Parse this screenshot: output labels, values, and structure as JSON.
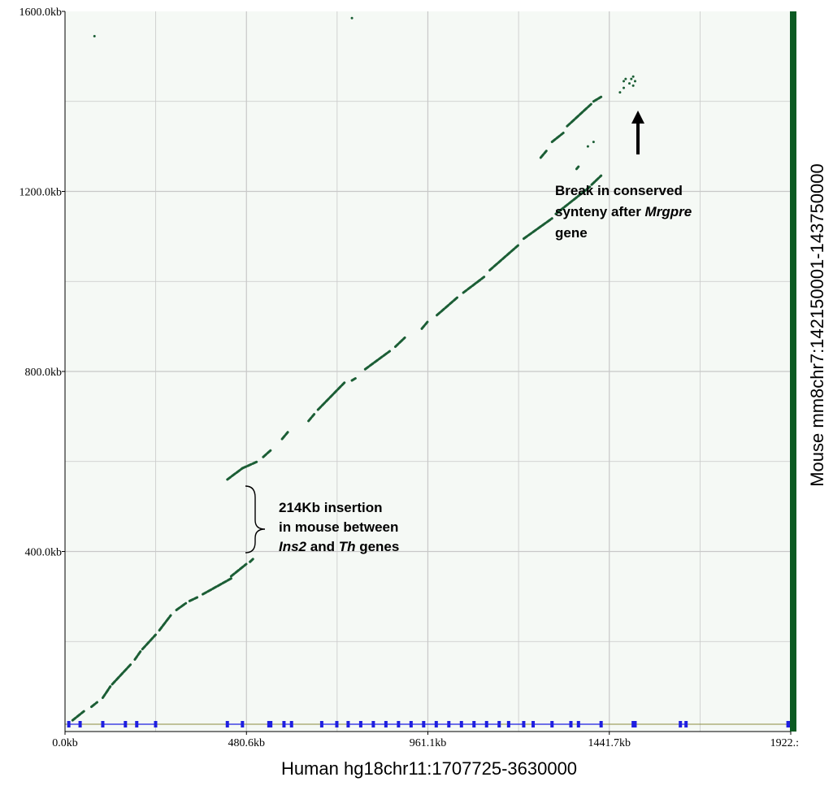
{
  "chart_data": {
    "type": "scatter",
    "title": "",
    "xlabel": "Human hg18chr11:1707725-3630000",
    "ylabel": "Mouse mm8chr7:142150001-143750000",
    "xlim": [
      0,
      1922.3
    ],
    "ylim": [
      0,
      1600
    ],
    "x_ticks": [
      {
        "value": 0,
        "label": "0.0kb"
      },
      {
        "value": 480.6,
        "label": "480.6kb"
      },
      {
        "value": 961.1,
        "label": "961.1kb"
      },
      {
        "value": 1441.7,
        "label": "1441.7kb"
      },
      {
        "value": 1922.3,
        "label": "1922.:"
      }
    ],
    "y_ticks": [
      {
        "value": 400,
        "label": "400.0kb"
      },
      {
        "value": 800,
        "label": "800.0kb"
      },
      {
        "value": 1200,
        "label": "1200.0kb"
      },
      {
        "value": 1600,
        "label": "1600.0kb"
      }
    ],
    "x_minor_grid": [
      240.3,
      720.8,
      1201.4,
      1682.0
    ],
    "y_minor_grid": [
      200,
      600,
      1000,
      1400
    ],
    "grid": true,
    "colors": {
      "points": "#1b5e35",
      "background": "#f5f9f5",
      "grid": "#c8c8c8",
      "gene_track": "#1f1fe0",
      "right_bar": "#0b5a22"
    },
    "segments": [
      [
        [
          20,
          25
        ],
        [
          50,
          45
        ]
      ],
      [
        [
          70,
          55
        ],
        [
          85,
          65
        ]
      ],
      [
        [
          100,
          75
        ],
        [
          120,
          100
        ]
      ],
      [
        [
          125,
          105
        ],
        [
          175,
          150
        ]
      ],
      [
        [
          185,
          160
        ],
        [
          200,
          178
        ]
      ],
      [
        [
          205,
          183
        ],
        [
          240,
          215
        ]
      ],
      [
        [
          250,
          225
        ],
        [
          280,
          258
        ]
      ],
      [
        [
          295,
          270
        ],
        [
          320,
          285
        ]
      ],
      [
        [
          330,
          290
        ],
        [
          350,
          298
        ]
      ],
      [
        [
          365,
          305
        ],
        [
          440,
          340
        ]
      ],
      [
        [
          440,
          345
        ],
        [
          480,
          372
        ]
      ],
      [
        [
          490,
          377
        ],
        [
          500,
          385
        ]
      ],
      [
        [
          430,
          560
        ],
        [
          470,
          585
        ]
      ],
      [
        [
          470,
          585
        ],
        [
          510,
          600
        ]
      ],
      [
        [
          525,
          610
        ],
        [
          545,
          625
        ]
      ],
      [
        [
          575,
          650
        ],
        [
          590,
          665
        ]
      ],
      [
        [
          645,
          690
        ],
        [
          660,
          705
        ]
      ],
      [
        [
          670,
          715
        ],
        [
          740,
          775
        ]
      ],
      [
        [
          760,
          780
        ],
        [
          770,
          785
        ]
      ],
      [
        [
          795,
          805
        ],
        [
          860,
          845
        ]
      ],
      [
        [
          875,
          855
        ],
        [
          900,
          875
        ]
      ],
      [
        [
          945,
          895
        ],
        [
          960,
          910
        ]
      ],
      [
        [
          985,
          925
        ],
        [
          1040,
          965
        ]
      ],
      [
        [
          1055,
          975
        ],
        [
          1110,
          1010
        ]
      ],
      [
        [
          1125,
          1025
        ],
        [
          1200,
          1080
        ]
      ],
      [
        [
          1215,
          1095
        ],
        [
          1290,
          1140
        ]
      ],
      [
        [
          1300,
          1150
        ],
        [
          1390,
          1210
        ]
      ],
      [
        [
          1395,
          1215
        ],
        [
          1420,
          1235
        ]
      ],
      [
        [
          1355,
          1250
        ],
        [
          1360,
          1255
        ]
      ],
      [
        [
          1260,
          1275
        ],
        [
          1275,
          1290
        ]
      ],
      [
        [
          1290,
          1310
        ],
        [
          1320,
          1330
        ]
      ],
      [
        [
          1330,
          1345
        ],
        [
          1395,
          1395
        ]
      ],
      [
        [
          1400,
          1400
        ],
        [
          1420,
          1410
        ]
      ]
    ],
    "points": [
      [
        78,
        1545
      ],
      [
        760,
        1585
      ],
      [
        1385,
        1300
      ],
      [
        1400,
        1310
      ],
      [
        1470,
        1420
      ],
      [
        1480,
        1430
      ],
      [
        1495,
        1440
      ],
      [
        1500,
        1450
      ],
      [
        1505,
        1455
      ],
      [
        1510,
        1445
      ],
      [
        1505,
        1435
      ],
      [
        1480,
        1445
      ],
      [
        1485,
        1450
      ]
    ],
    "gene_track": [
      [
        10,
        40
      ],
      [
        100,
        160
      ],
      [
        190,
        240
      ],
      [
        430,
        470
      ],
      [
        540,
        545
      ],
      [
        580,
        600
      ],
      [
        680,
        720
      ],
      [
        750,
        1150
      ],
      [
        1175,
        1215
      ],
      [
        1240,
        1340
      ],
      [
        1360,
        1420
      ],
      [
        1505,
        1510
      ],
      [
        1630,
        1645
      ],
      [
        1915,
        1920
      ]
    ]
  },
  "annotations": {
    "insertion": [
      "214Kb insertion",
      "in mouse between",
      "Ins2 and Th genes"
    ],
    "insertion_italic": [
      "Ins2",
      "Th"
    ],
    "break": [
      "Break in conserved",
      "synteny after Mrgpre",
      "gene"
    ],
    "break_italic": [
      "Mrgpre"
    ]
  }
}
